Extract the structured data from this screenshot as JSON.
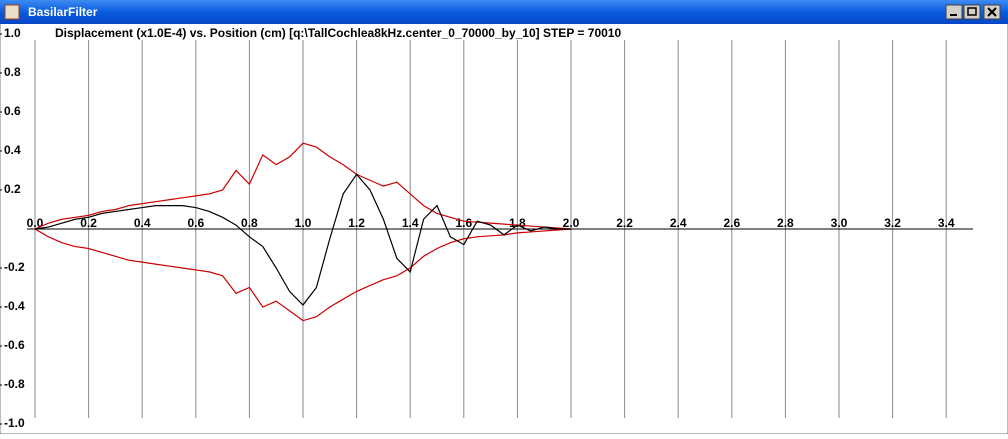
{
  "window": {
    "title": "BasilarFilter"
  },
  "chart_data": {
    "type": "line",
    "title": "Displacement (x1.0E-4) vs. Position (cm) [q:\\TallCochlea8kHz.center_0_70000_by_10] STEP = 70010",
    "x": [
      0,
      0.05,
      0.1,
      0.15,
      0.2,
      0.25,
      0.3,
      0.35,
      0.4,
      0.45,
      0.5,
      0.55,
      0.6,
      0.65,
      0.7,
      0.75,
      0.8,
      0.85,
      0.9,
      0.95,
      1.0,
      1.05,
      1.1,
      1.15,
      1.2,
      1.25,
      1.3,
      1.35,
      1.4,
      1.45,
      1.5,
      1.55,
      1.6,
      1.65,
      1.7,
      1.75,
      1.8,
      1.85,
      1.9,
      1.95,
      2.0
    ],
    "series": [
      {
        "color": "#cc0000",
        "values": [
          0,
          0.03,
          0.05,
          0.06,
          0.07,
          0.09,
          0.1,
          0.12,
          0.13,
          0.14,
          0.15,
          0.16,
          0.17,
          0.18,
          0.2,
          0.3,
          0.23,
          0.38,
          0.33,
          0.37,
          0.44,
          0.42,
          0.37,
          0.33,
          0.28,
          0.25,
          0.22,
          0.24,
          0.18,
          0.12,
          0.08,
          0.06,
          0.04,
          0.035,
          0.03,
          0.025,
          0.02,
          0.015,
          0.01,
          0.005,
          0
        ]
      },
      {
        "color": "#cc0000",
        "values": [
          0,
          -0.04,
          -0.07,
          -0.09,
          -0.1,
          -0.12,
          -0.14,
          -0.16,
          -0.17,
          -0.18,
          -0.19,
          -0.2,
          -0.21,
          -0.22,
          -0.24,
          -0.33,
          -0.3,
          -0.4,
          -0.37,
          -0.42,
          -0.47,
          -0.45,
          -0.4,
          -0.36,
          -0.32,
          -0.29,
          -0.26,
          -0.24,
          -0.2,
          -0.14,
          -0.1,
          -0.07,
          -0.05,
          -0.04,
          -0.035,
          -0.03,
          -0.02,
          -0.015,
          -0.01,
          -0.005,
          0
        ]
      },
      {
        "color": "#000000",
        "values": [
          0,
          0.01,
          0.03,
          0.05,
          0.06,
          0.08,
          0.09,
          0.1,
          0.11,
          0.12,
          0.12,
          0.12,
          0.11,
          0.09,
          0.06,
          0.02,
          -0.04,
          -0.09,
          -0.2,
          -0.32,
          -0.39,
          -0.3,
          -0.05,
          0.18,
          0.28,
          0.2,
          0.05,
          -0.15,
          -0.22,
          0.05,
          0.12,
          -0.04,
          -0.08,
          0.04,
          0.02,
          -0.03,
          0.02,
          -0.01,
          0.01,
          0,
          0
        ]
      }
    ],
    "xlim": [
      0,
      3.5
    ],
    "xticks": [
      {
        "value": 0,
        "label": "0.0"
      },
      0.2,
      0.4,
      0.6,
      0.8,
      {
        "value": 1,
        "label": "1.0"
      },
      1.2,
      1.4,
      1.6,
      1.8,
      {
        "value": 2,
        "label": "2.0"
      },
      2.2,
      2.4,
      2.6,
      2.8,
      {
        "value": 3,
        "label": "3.0"
      },
      3.2,
      3.4
    ],
    "ylim": [
      -1,
      1
    ],
    "yticks": [
      {
        "value": 1,
        "label": "1.0"
      },
      0.8,
      0.6,
      0.4,
      0.2,
      -0.2,
      -0.4,
      -0.6,
      -0.8,
      {
        "value": -1,
        "label": "-1.0"
      }
    ],
    "grid": true
  }
}
